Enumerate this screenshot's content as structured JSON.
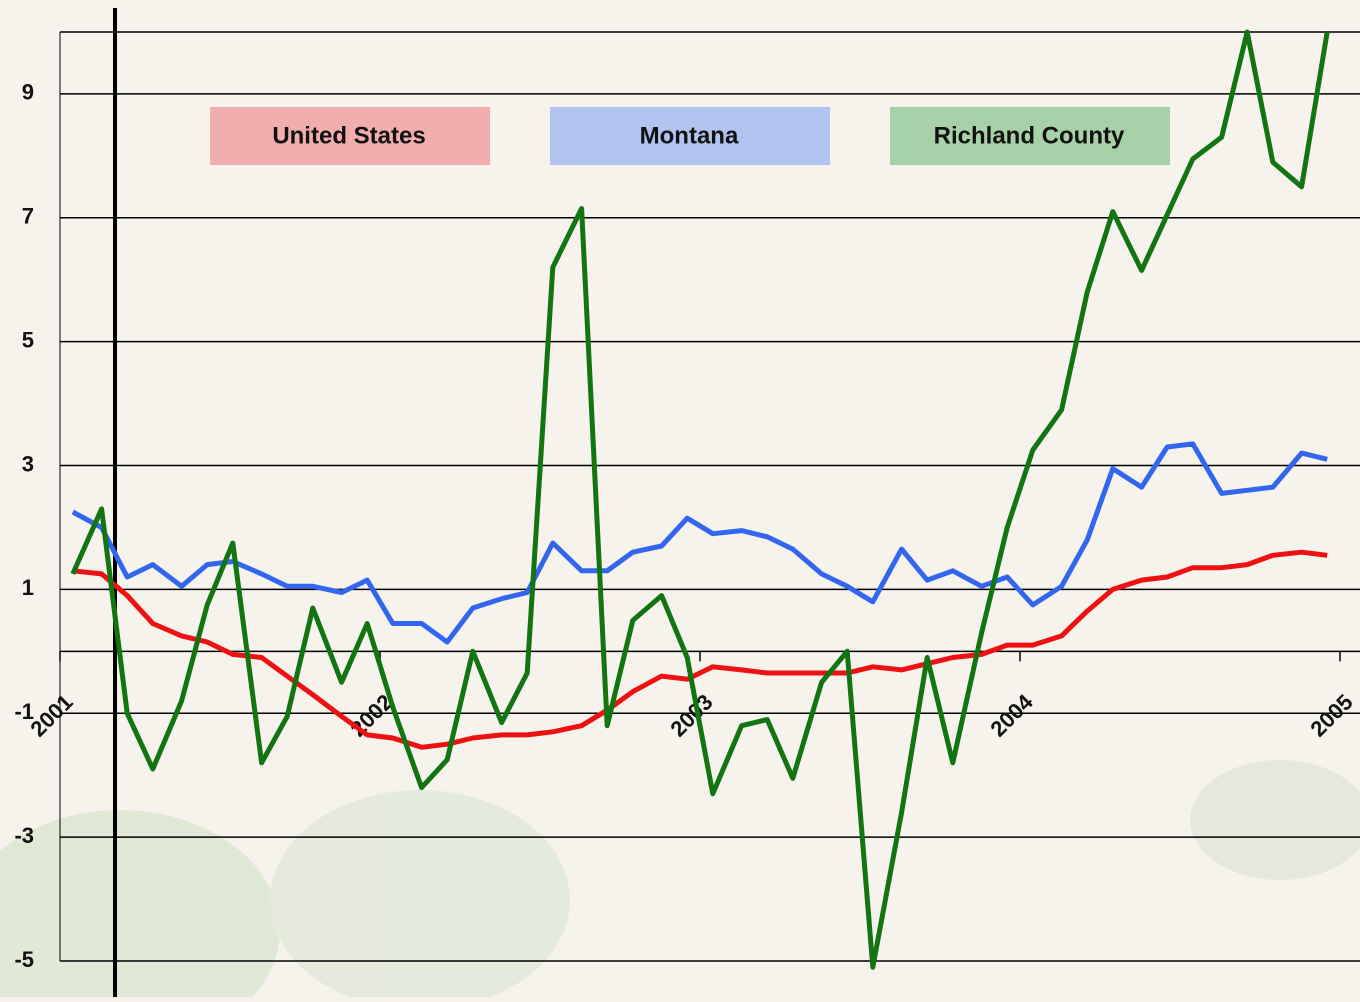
{
  "chart_data": {
    "type": "line",
    "x": [
      2001.04,
      2001.13,
      2001.21,
      2001.29,
      2001.38,
      2001.46,
      2001.54,
      2001.63,
      2001.71,
      2001.79,
      2001.88,
      2001.96,
      2002.04,
      2002.13,
      2002.21,
      2002.29,
      2002.38,
      2002.46,
      2002.54,
      2002.63,
      2002.71,
      2002.79,
      2002.88,
      2002.96,
      2003.04,
      2003.13,
      2003.21,
      2003.29,
      2003.38,
      2003.46,
      2003.54,
      2003.63,
      2003.71,
      2003.79,
      2003.88,
      2003.96,
      2004.04,
      2004.13,
      2004.21,
      2004.29,
      2004.38,
      2004.46,
      2004.54,
      2004.63,
      2004.71,
      2004.79,
      2004.88,
      2004.96
    ],
    "series": [
      {
        "name": "United States",
        "color": "#ee1111",
        "legend_color": "#f2a6a6",
        "values": [
          1.3,
          1.25,
          0.9,
          0.45,
          0.25,
          0.15,
          -0.05,
          -0.1,
          -0.4,
          -0.7,
          -1.05,
          -1.35,
          -1.4,
          -1.55,
          -1.5,
          -1.4,
          -1.35,
          -1.35,
          -1.3,
          -1.2,
          -0.95,
          -0.65,
          -0.4,
          -0.45,
          -0.25,
          -0.3,
          -0.35,
          -0.35,
          -0.35,
          -0.35,
          -0.25,
          -0.3,
          -0.2,
          -0.1,
          -0.05,
          0.1,
          0.1,
          0.25,
          0.65,
          1.0,
          1.15,
          1.2,
          1.35,
          1.35,
          1.4,
          1.55,
          1.6,
          1.55
        ]
      },
      {
        "name": "Montana",
        "color": "#3366ee",
        "legend_color": "#a9bff0",
        "values": [
          2.25,
          2.0,
          1.2,
          1.4,
          1.05,
          1.4,
          1.45,
          1.25,
          1.05,
          1.05,
          0.95,
          1.15,
          0.45,
          0.45,
          0.15,
          0.7,
          0.85,
          0.95,
          1.75,
          1.3,
          1.3,
          1.6,
          1.7,
          2.15,
          1.9,
          1.95,
          1.85,
          1.65,
          1.25,
          1.05,
          0.8,
          1.65,
          1.15,
          1.3,
          1.05,
          1.2,
          0.75,
          1.05,
          1.8,
          2.95,
          2.65,
          3.3,
          3.35,
          2.55,
          2.6,
          2.65,
          3.2,
          3.1
        ]
      },
      {
        "name": "Richland County",
        "color": "#127512",
        "legend_color": "#9fcd9f",
        "values": [
          1.25,
          2.3,
          -1.0,
          -1.9,
          -0.8,
          0.75,
          1.75,
          -1.8,
          -1.05,
          0.7,
          -0.5,
          0.45,
          -0.9,
          -2.2,
          -1.75,
          0.0,
          -1.15,
          -0.35,
          6.2,
          7.15,
          -1.2,
          0.5,
          0.9,
          -0.1,
          -2.3,
          -1.2,
          -1.1,
          -2.05,
          -0.5,
          0.0,
          -5.1,
          -2.6,
          -0.1,
          -1.8,
          0.3,
          2.0,
          3.25,
          3.9,
          5.8,
          7.1,
          6.15,
          7.05,
          7.95,
          8.3,
          10.0,
          7.9,
          7.5,
          10.0
        ]
      }
    ],
    "xlim": [
      2001,
      2005
    ],
    "xticks": [
      2001,
      2002,
      2003,
      2004,
      2005
    ],
    "ylim": [
      -5,
      10
    ],
    "yticks": [
      -5,
      -3,
      -1,
      1,
      3,
      5,
      7,
      9
    ],
    "grid": true
  }
}
